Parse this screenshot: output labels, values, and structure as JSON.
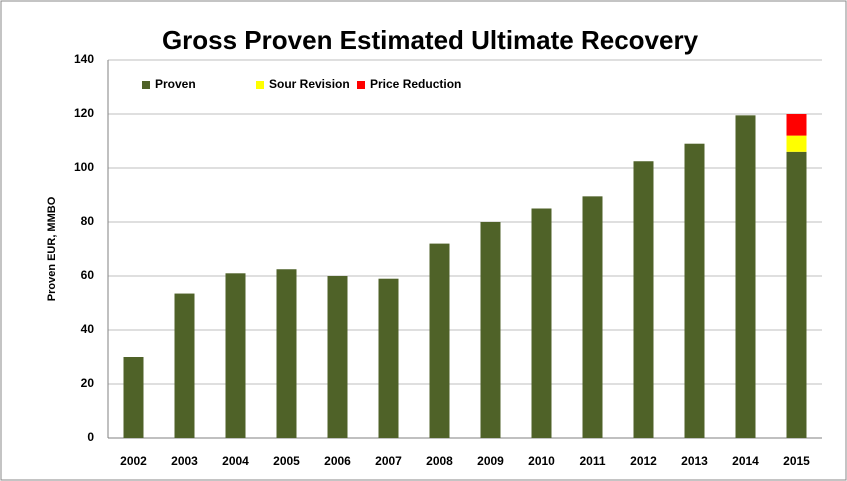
{
  "chart_data": {
    "type": "stacked_bar",
    "title": "Gross Proven Estimated Ultimate Recovery",
    "y_label": "Proven EUR, MMBO",
    "categories": [
      "2002",
      "2003",
      "2004",
      "2005",
      "2006",
      "2007",
      "2008",
      "2009",
      "2010",
      "2011",
      "2012",
      "2013",
      "2014",
      "2015"
    ],
    "series": [
      {
        "name": "Proven",
        "color": "#4f6228",
        "values": [
          30,
          53.5,
          61,
          62.5,
          60,
          59,
          72,
          80,
          85,
          89.5,
          102.5,
          109,
          119.5,
          106
        ]
      },
      {
        "name": "Sour Revision",
        "color": "#ffff00",
        "values": [
          null,
          null,
          null,
          null,
          null,
          null,
          null,
          null,
          null,
          null,
          null,
          null,
          null,
          6
        ]
      },
      {
        "name": "Price Reduction",
        "color": "#ff0000",
        "values": [
          null,
          null,
          null,
          null,
          null,
          null,
          null,
          null,
          null,
          null,
          null,
          null,
          null,
          8
        ]
      }
    ],
    "ylim": [
      0,
      140
    ],
    "yticks": [
      0,
      20,
      40,
      60,
      80,
      100,
      120,
      140
    ],
    "grid": true,
    "legend": "top-left"
  }
}
